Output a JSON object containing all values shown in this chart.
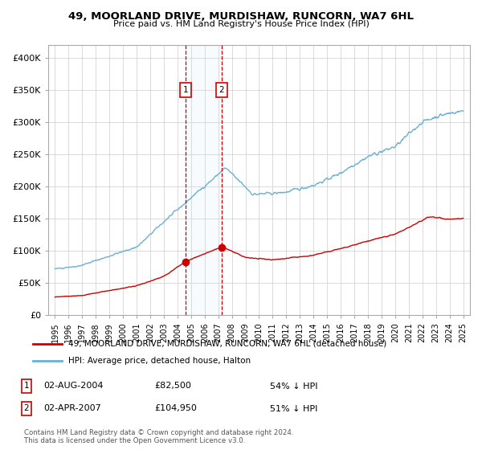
{
  "title": "49, MOORLAND DRIVE, MURDISHAW, RUNCORN, WA7 6HL",
  "subtitle": "Price paid vs. HM Land Registry's House Price Index (HPI)",
  "ylabel_ticks": [
    "£0",
    "£50K",
    "£100K",
    "£150K",
    "£200K",
    "£250K",
    "£300K",
    "£350K",
    "£400K"
  ],
  "ytick_values": [
    0,
    50000,
    100000,
    150000,
    200000,
    250000,
    300000,
    350000,
    400000
  ],
  "ylim": [
    0,
    420000
  ],
  "hpi_color": "#6ab0d4",
  "price_color": "#cc0000",
  "purchase1_date_num": 2004.58,
  "purchase1_price": 82500,
  "purchase2_date_num": 2007.25,
  "purchase2_price": 104950,
  "legend_address": "49, MOORLAND DRIVE, MURDISHAW, RUNCORN, WA7 6HL (detached house)",
  "legend_hpi": "HPI: Average price, detached house, Halton",
  "annotation1_date": "02-AUG-2004",
  "annotation1_price": "£82,500",
  "annotation1_hpi": "54% ↓ HPI",
  "annotation2_date": "02-APR-2007",
  "annotation2_price": "£104,950",
  "annotation2_hpi": "51% ↓ HPI",
  "footer": "Contains HM Land Registry data © Crown copyright and database right 2024.\nThis data is licensed under the Open Government Licence v3.0.",
  "background_color": "#ffffff",
  "grid_color": "#cccccc"
}
